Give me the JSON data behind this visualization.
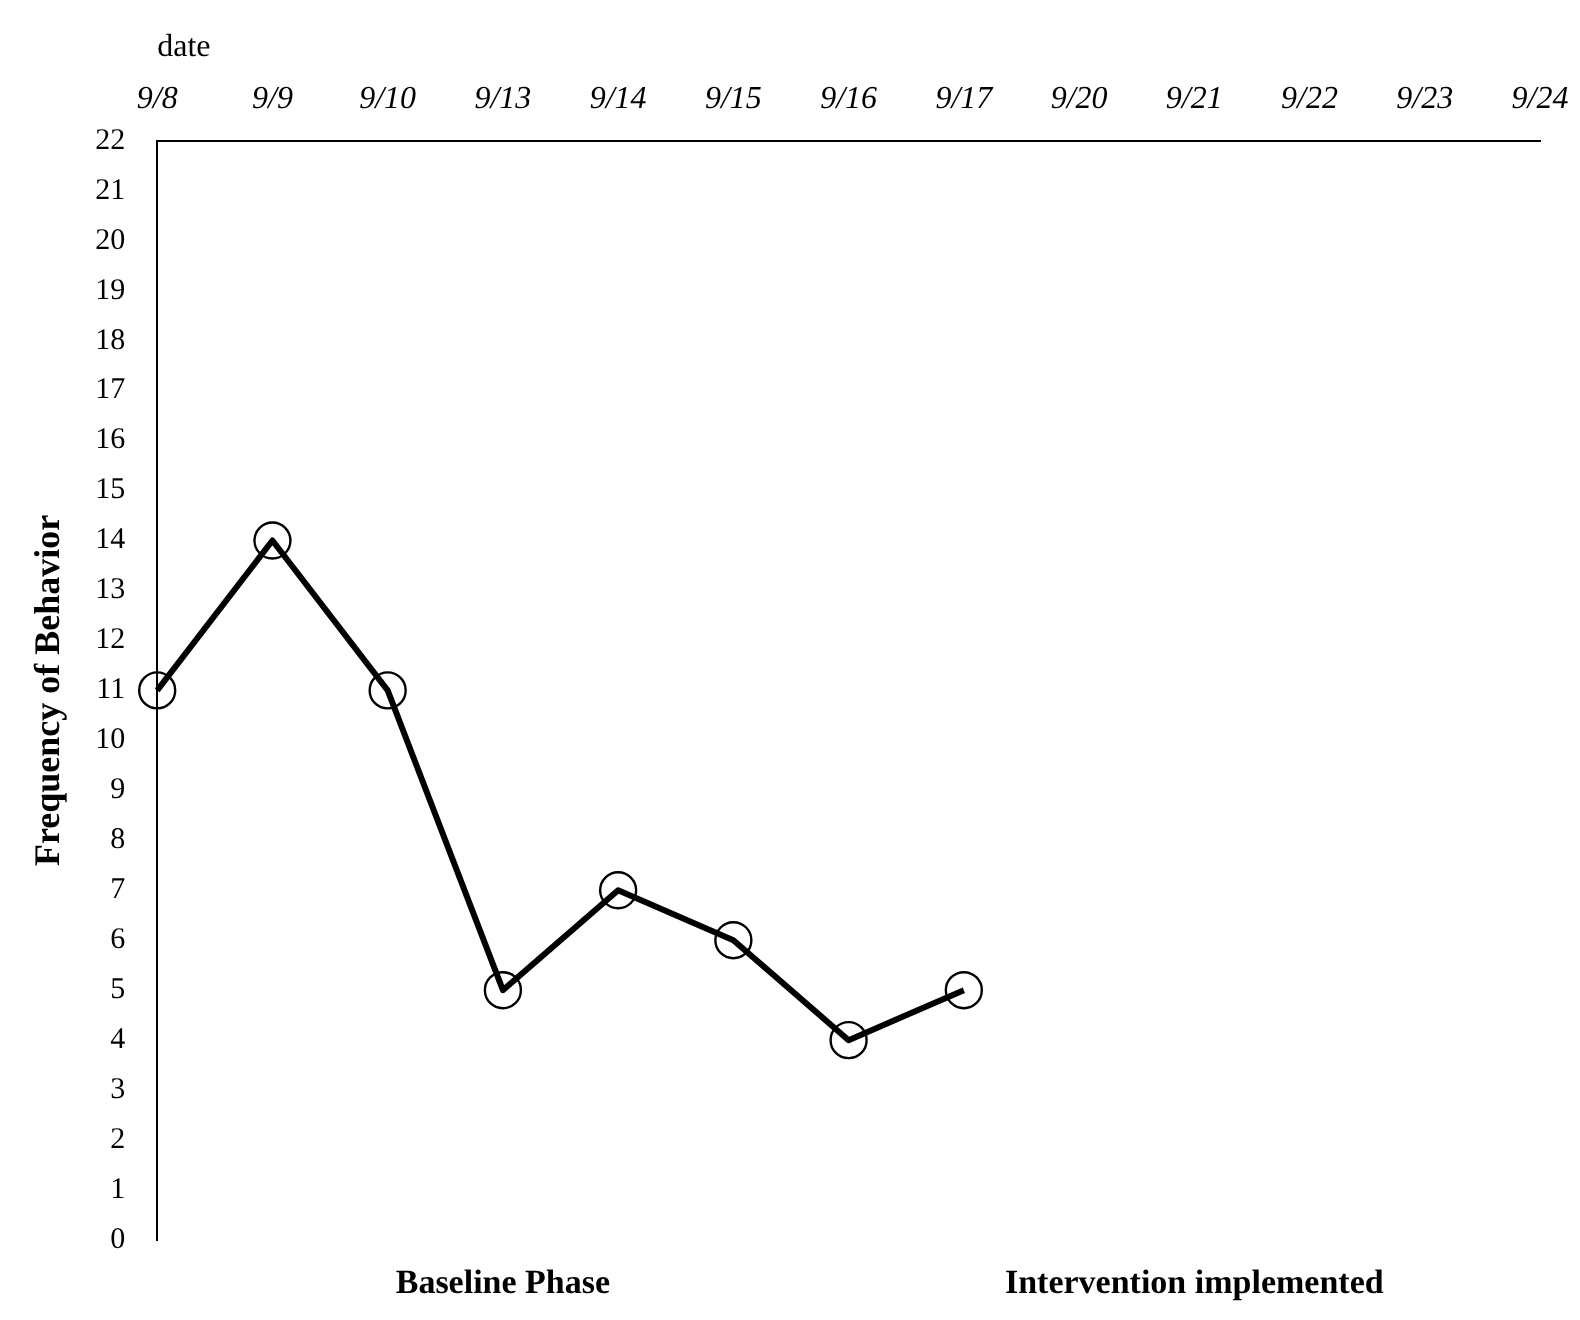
{
  "chart_data": {
    "type": "line",
    "xlabel": "date",
    "ylabel": "Frequency of Behavior",
    "categories": [
      "9/8",
      "9/9",
      "9/10",
      "9/13",
      "9/14",
      "9/15",
      "9/16",
      "9/17",
      "9/20",
      "9/21",
      "9/22",
      "9/23",
      "9/24"
    ],
    "series": [
      {
        "color": "#000000",
        "values": [
          11,
          14,
          11,
          5,
          7,
          6,
          4,
          5,
          null,
          null,
          null,
          null,
          null
        ]
      }
    ],
    "ylim": [
      0,
      22
    ],
    "yticks": [
      0,
      1,
      2,
      3,
      4,
      5,
      6,
      7,
      8,
      9,
      10,
      11,
      12,
      13,
      14,
      15,
      16,
      17,
      18,
      19,
      20,
      21,
      22
    ],
    "annotations": [
      "Baseline Phase",
      "Intervention implemented"
    ],
    "grid": false,
    "legend": false,
    "marker": "circle",
    "line_style": "solid"
  }
}
